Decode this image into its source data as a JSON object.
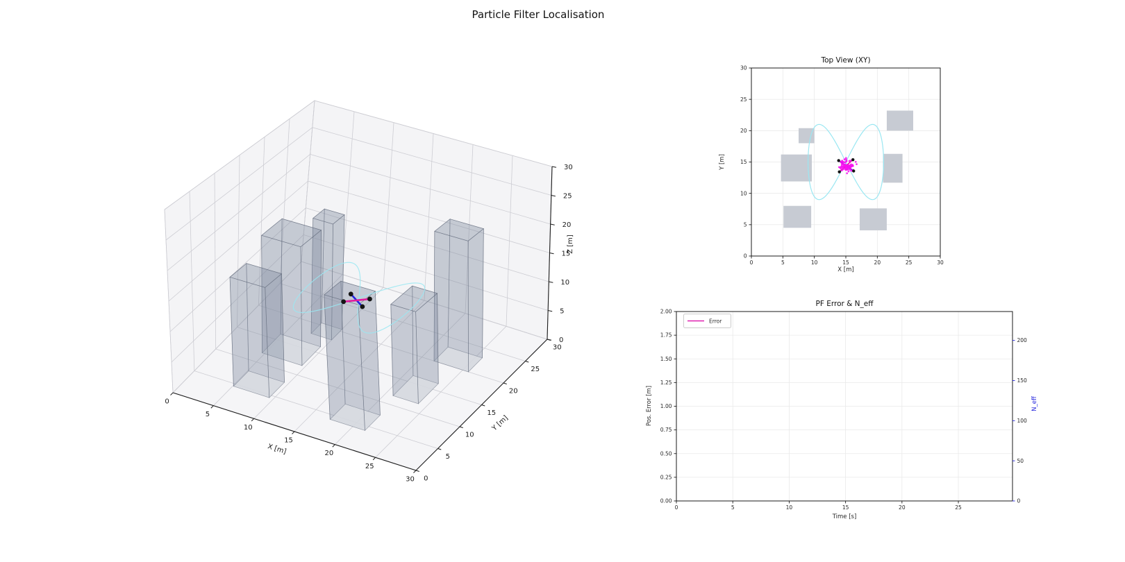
{
  "figure": {
    "title": "Particle Filter Localisation"
  },
  "colors": {
    "trajectory": "#9ae7f2",
    "particles": "#f711f0",
    "rotor": "#151515",
    "arm_magenta": "#df1a9e",
    "arm_blue": "#2323e0",
    "obstacle_fill_2d": "#c7cbd3",
    "building_face": "rgba(130,140,160,0.30)",
    "building_face_hidden": "rgba(130,140,160,0.14)",
    "building_edge": "rgba(100,108,125,0.6)",
    "building_base": "rgba(255,255,255,0.85)",
    "error_line": "#e020b0",
    "neff_axis": "#2222dd",
    "grid_2d": "#e9e9e9",
    "grid_3d": "#cdcdd3",
    "pane_vertical": "#f4f4f6",
    "pane_floor": "#f5f5f7",
    "frame": "#1a1a1a",
    "text": "#262626"
  },
  "chart_data": [
    {
      "id": "scene-3d",
      "type": "line",
      "projection": "3d",
      "title": "",
      "xlabel": "X [m]",
      "ylabel": "Y [m]",
      "zlabel": "Z [m]",
      "xlim": [
        0,
        30
      ],
      "ylim": [
        0,
        30
      ],
      "zlim": [
        0,
        30
      ],
      "xticks": {
        "values": [
          0,
          5,
          10,
          15,
          20,
          25,
          30
        ],
        "labels": [
          "0",
          "5",
          "10",
          "15",
          "20",
          "25",
          "30"
        ]
      },
      "yticks": {
        "values": [
          0,
          5,
          10,
          15,
          20,
          25,
          30
        ],
        "labels": [
          "0",
          "5",
          "10",
          "15",
          "20",
          "25",
          "30"
        ]
      },
      "zticks": {
        "values": [
          0,
          5,
          10,
          15,
          20,
          25,
          30
        ],
        "labels": [
          "0",
          "5",
          "10",
          "15",
          "20",
          "25",
          "30"
        ]
      },
      "grid": true,
      "obstacles": [
        {
          "x": [
            7.5,
            10.0
          ],
          "y": [
            18.0,
            20.4
          ],
          "height": 20
        },
        {
          "x": [
            4.7,
            9.6
          ],
          "y": [
            11.9,
            16.2
          ],
          "height": 20
        },
        {
          "x": [
            5.1,
            9.5
          ],
          "y": [
            4.5,
            8.0
          ],
          "height": 18
        },
        {
          "x": [
            17.2,
            21.5
          ],
          "y": [
            4.1,
            7.6
          ],
          "height": 20
        },
        {
          "x": [
            20.9,
            24.0
          ],
          "y": [
            11.7,
            16.3
          ],
          "height": 15
        },
        {
          "x": [
            21.5,
            25.7
          ],
          "y": [
            20.0,
            23.2
          ],
          "height": 22
        }
      ],
      "trajectory": {
        "shape": "figure-eight",
        "center": [
          15,
          15
        ],
        "x_amplitude": 6,
        "y_amplitude": 6,
        "altitude": 11.5,
        "formula": "x=15+6*sin(t), y=15+6*sin(2t), z=11.5"
      },
      "drone": {
        "position": [
          15.05,
          14.4,
          11.5
        ],
        "rotor_angles_deg": [
          42,
          145,
          222,
          325
        ],
        "arm_radius": 1.45
      }
    },
    {
      "id": "top-view",
      "type": "scatter",
      "title": "Top View (XY)",
      "xlabel": "X [m]",
      "ylabel": "Y [m]",
      "xlim": [
        0,
        30
      ],
      "ylim": [
        0,
        30
      ],
      "xticks": {
        "values": [
          0,
          5,
          10,
          15,
          20,
          25,
          30
        ],
        "labels": [
          "0",
          "5",
          "10",
          "15",
          "20",
          "25",
          "30"
        ]
      },
      "yticks": {
        "values": [
          0,
          5,
          10,
          15,
          20,
          25,
          30
        ],
        "labels": [
          "0",
          "5",
          "10",
          "15",
          "20",
          "25",
          "30"
        ]
      },
      "grid": true,
      "obstacles": [
        {
          "x": [
            7.5,
            10.0
          ],
          "y": [
            18.0,
            20.4
          ]
        },
        {
          "x": [
            4.7,
            9.6
          ],
          "y": [
            11.9,
            16.2
          ]
        },
        {
          "x": [
            5.1,
            9.5
          ],
          "y": [
            4.5,
            8.0
          ]
        },
        {
          "x": [
            17.2,
            21.5
          ],
          "y": [
            4.1,
            7.6
          ]
        },
        {
          "x": [
            20.9,
            24.0
          ],
          "y": [
            11.7,
            16.3
          ]
        },
        {
          "x": [
            21.5,
            25.7
          ],
          "y": [
            20.0,
            23.2
          ]
        }
      ],
      "trajectory": {
        "shape": "figure-eight",
        "center": [
          15,
          15
        ],
        "x_amplitude": 6,
        "y_amplitude": 6
      },
      "particles": {
        "count": 90,
        "mean": [
          15.05,
          14.4
        ],
        "std": 0.55
      },
      "drone": {
        "position": [
          15.05,
          14.4
        ],
        "rotor_angles_deg": [
          42,
          145,
          222,
          325
        ],
        "arm_radius": 1.45
      }
    },
    {
      "id": "error-neff",
      "type": "line",
      "title": "PF Error & N_eff",
      "xlabel": "Time [s]",
      "ylabel_left": "Pos. Error [m]",
      "ylabel_right": "N_eff",
      "xlim": [
        0,
        29.8
      ],
      "xticks": {
        "values": [
          0,
          5,
          10,
          15,
          20,
          25
        ],
        "labels": [
          "0",
          "5",
          "10",
          "15",
          "20",
          "25"
        ]
      },
      "ylim_left": [
        0,
        2.0
      ],
      "yticks_left": {
        "values": [
          0,
          0.25,
          0.5,
          0.75,
          1.0,
          1.25,
          1.5,
          1.75,
          2.0
        ],
        "labels": [
          "0.00",
          "0.25",
          "0.50",
          "0.75",
          "1.00",
          "1.25",
          "1.50",
          "1.75",
          "2.00"
        ]
      },
      "ylim_right": [
        0,
        236
      ],
      "yticks_right": {
        "values": [
          0,
          50,
          100,
          150,
          200
        ],
        "labels": [
          "0",
          "50",
          "100",
          "150",
          "200"
        ]
      },
      "grid": true,
      "legend": {
        "position": "upper left",
        "entries": [
          {
            "label": "Error",
            "color": "#e020b0"
          }
        ]
      },
      "series": [
        {
          "name": "Error",
          "x": [],
          "y": []
        }
      ]
    }
  ]
}
